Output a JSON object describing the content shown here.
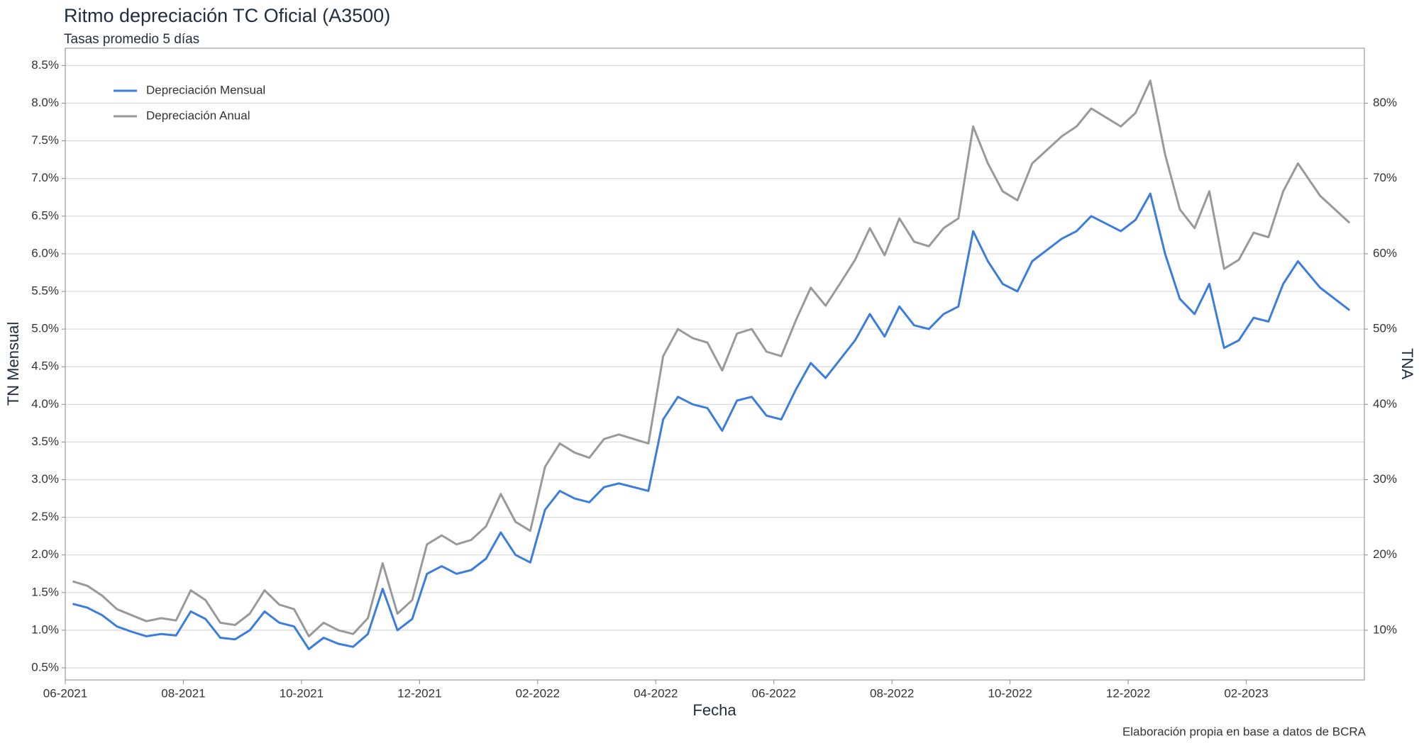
{
  "chart_data": {
    "type": "line",
    "title": "Ritmo depreciación TC Oficial (A3500)",
    "subtitle": "Tasas promedio 5 días",
    "x_label": "Fecha",
    "y_label": "TN Mensual",
    "y2_label": "TNA",
    "caption": "Elaboración propia en base a datos de BCRA",
    "grid": true,
    "legend": "top-left",
    "x": [
      "06-2021",
      "06-2021",
      "06-2021",
      "06-2021",
      "07-2021",
      "07-2021",
      "07-2021",
      "07-2021",
      "08-2021",
      "08-2021",
      "08-2021",
      "08-2021",
      "09-2021",
      "09-2021",
      "09-2021",
      "09-2021",
      "10-2021",
      "10-2021",
      "10-2021",
      "10-2021",
      "11-2021",
      "11-2021",
      "11-2021",
      "11-2021",
      "12-2021",
      "12-2021",
      "12-2021",
      "12-2021",
      "01-2022",
      "01-2022",
      "01-2022",
      "01-2022",
      "02-2022",
      "02-2022",
      "02-2022",
      "02-2022",
      "03-2022",
      "03-2022",
      "03-2022",
      "03-2022",
      "04-2022",
      "04-2022",
      "04-2022",
      "04-2022",
      "05-2022",
      "05-2022",
      "05-2022",
      "05-2022",
      "06-2022",
      "06-2022",
      "06-2022",
      "06-2022",
      "07-2022",
      "07-2022",
      "07-2022",
      "07-2022",
      "08-2022",
      "08-2022",
      "08-2022",
      "08-2022",
      "09-2022",
      "09-2022",
      "09-2022",
      "09-2022",
      "10-2022",
      "10-2022",
      "10-2022",
      "10-2022",
      "11-2022",
      "11-2022",
      "11-2022",
      "11-2022",
      "12-2022",
      "12-2022",
      "12-2022",
      "12-2022",
      "01-2023",
      "01-2023",
      "01-2023",
      "01-2023",
      "02-2023",
      "02-2023",
      "02-2023",
      "02-2023",
      "03-2023",
      "03-2023"
    ],
    "xticks": [
      "06-2021",
      "08-2021",
      "10-2021",
      "12-2021",
      "02-2022",
      "04-2022",
      "06-2022",
      "08-2022",
      "10-2022",
      "12-2022",
      "02-2023"
    ],
    "ylim": [
      0.34,
      8.73
    ],
    "yticks": [
      {
        "value": 0.5,
        "label": "0.5%"
      },
      {
        "value": 1.0,
        "label": "1.0%"
      },
      {
        "value": 1.5,
        "label": "1.5%"
      },
      {
        "value": 2.0,
        "label": "2.0%"
      },
      {
        "value": 2.5,
        "label": "2.5%"
      },
      {
        "value": 3.0,
        "label": "3.0%"
      },
      {
        "value": 3.5,
        "label": "3.5%"
      },
      {
        "value": 4.0,
        "label": "4.0%"
      },
      {
        "value": 4.5,
        "label": "4.5%"
      },
      {
        "value": 5.0,
        "label": "5.0%"
      },
      {
        "value": 5.5,
        "label": "5.5%"
      },
      {
        "value": 6.0,
        "label": "6.0%"
      },
      {
        "value": 6.5,
        "label": "6.5%"
      },
      {
        "value": 7.0,
        "label": "7.0%"
      },
      {
        "value": 7.5,
        "label": "7.5%"
      },
      {
        "value": 8.0,
        "label": "8.0%"
      },
      {
        "value": 8.5,
        "label": "8.5%"
      }
    ],
    "y2lim": [
      3.4,
      87.3
    ],
    "y2ticks": [
      {
        "value": 10,
        "label": "10%"
      },
      {
        "value": 20,
        "label": "20%"
      },
      {
        "value": 30,
        "label": "30%"
      },
      {
        "value": 40,
        "label": "40%"
      },
      {
        "value": 50,
        "label": "50%"
      },
      {
        "value": 60,
        "label": "60%"
      },
      {
        "value": 70,
        "label": "70%"
      },
      {
        "value": 80,
        "label": "80%"
      }
    ],
    "series": [
      {
        "name": "Depreciación Mensual",
        "color": "#3b7ddd",
        "values": [
          1.35,
          1.3,
          1.2,
          1.05,
          0.98,
          0.92,
          0.95,
          0.93,
          1.25,
          1.15,
          0.9,
          0.88,
          1.0,
          1.25,
          1.1,
          1.05,
          0.75,
          0.9,
          0.82,
          0.78,
          0.95,
          1.55,
          1.0,
          1.15,
          1.75,
          1.85,
          1.75,
          1.8,
          1.95,
          2.3,
          2.0,
          1.9,
          2.6,
          2.85,
          2.75,
          2.7,
          2.9,
          2.95,
          2.9,
          2.85,
          3.8,
          4.1,
          4.0,
          3.95,
          3.65,
          4.05,
          4.1,
          3.85,
          3.8,
          4.2,
          4.55,
          4.35,
          4.6,
          4.85,
          5.2,
          4.9,
          5.3,
          5.05,
          5.0,
          5.2,
          5.3,
          6.3,
          5.9,
          5.6,
          5.5,
          5.9,
          6.05,
          6.2,
          6.3,
          6.5,
          6.4,
          6.3,
          6.45,
          6.8,
          6.0,
          5.4,
          5.2,
          5.6,
          4.75,
          4.85,
          5.15,
          5.1,
          5.6,
          5.9,
          5.55,
          5.25
        ]
      },
      {
        "name": "Depreciación Anual",
        "color": "#999999",
        "axis": "y2",
        "values": [
          16.5,
          15.9,
          14.6,
          12.8,
          12.0,
          11.2,
          11.6,
          11.3,
          15.3,
          14.0,
          11.0,
          10.7,
          12.2,
          15.3,
          13.4,
          12.8,
          9.2,
          11.0,
          10.0,
          9.5,
          11.6,
          18.9,
          12.2,
          14.0,
          21.4,
          22.6,
          21.4,
          22.0,
          23.8,
          28.1,
          24.4,
          23.2,
          31.7,
          34.8,
          33.6,
          32.9,
          35.4,
          36.0,
          35.4,
          34.8,
          46.4,
          50.0,
          48.8,
          48.2,
          44.5,
          49.4,
          50.0,
          47.0,
          46.4,
          51.2,
          55.5,
          53.1,
          56.1,
          59.2,
          63.4,
          59.8,
          64.7,
          61.6,
          61.0,
          63.4,
          64.7,
          76.9,
          72.0,
          68.3,
          67.1,
          72.0,
          73.8,
          75.6,
          76.9,
          79.3,
          78.1,
          76.9,
          78.7,
          83.0,
          73.2,
          65.9,
          63.4,
          68.3,
          58.0,
          59.2,
          62.8,
          62.2,
          68.3,
          72.0,
          67.7,
          64.1
        ]
      }
    ]
  }
}
